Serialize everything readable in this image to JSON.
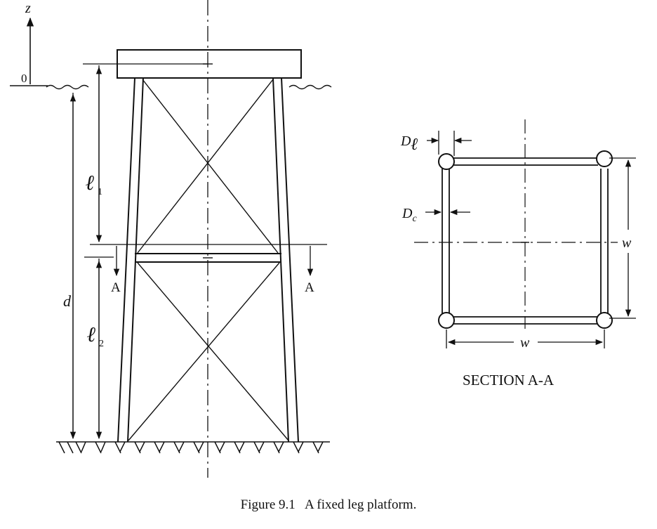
{
  "labels": {
    "z": "z",
    "zero": "0",
    "d": "d",
    "l1_symbol": "ℓ",
    "l1_sub": "1",
    "l2_symbol": "ℓ",
    "l2_sub": "2",
    "section_mark_left": "A",
    "section_mark_right": "A",
    "dl_main": "D",
    "dl_sub": "ℓ",
    "dc_main": "D",
    "dc_sub": "c",
    "w_right": "w",
    "w_bottom": "w",
    "section_title": "SECTION A-A"
  },
  "caption": {
    "number": "Figure 9.1",
    "text": "A fixed leg platform."
  }
}
